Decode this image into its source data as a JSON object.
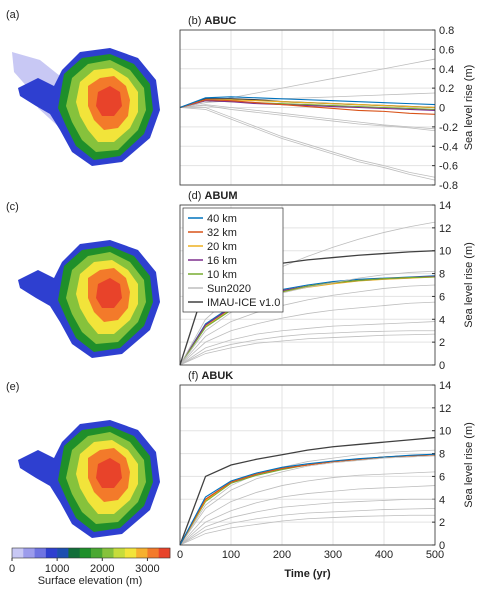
{
  "maps": [
    "(a)",
    "(c)",
    "(e)"
  ],
  "colorbar": {
    "label": "Surface elevation (m)",
    "clim": [
      0,
      3500
    ],
    "ticks": [
      0,
      1000,
      2000,
      3000
    ],
    "colors": [
      "#c8c8f4",
      "#9c9cec",
      "#6f74e2",
      "#2e3fd0",
      "#1c4fb0",
      "#126e3a",
      "#1f8f2a",
      "#4aa832",
      "#86c23c",
      "#c6dc3c",
      "#f2e43a",
      "#f6b02e",
      "#f37a2a",
      "#e8432a"
    ]
  },
  "chart_data": [
    {
      "type": "line",
      "panel": "(b)",
      "title": "ABUC",
      "ylabel": "Sea level rise (m)",
      "x": [
        0,
        50,
        100,
        150,
        200,
        250,
        300,
        350,
        400,
        450,
        500
      ],
      "xlim": [
        0,
        500
      ],
      "xticks": [
        0,
        100,
        200,
        300,
        400,
        500
      ],
      "ylim": [
        -0.8,
        0.8
      ],
      "yticks": [
        -0.8,
        -0.6,
        -0.4,
        -0.2,
        0,
        0.2,
        0.4,
        0.6,
        0.8
      ],
      "grid": true,
      "series": [
        {
          "color": "#bdbdbd",
          "values": [
            [
              0,
              0.05,
              0.1,
              0.15,
              0.2,
              0.25,
              0.3,
              0.35,
              0.4,
              0.45,
              0.5
            ],
            [
              0,
              0.0,
              -0.1,
              -0.2,
              -0.3,
              -0.38,
              -0.46,
              -0.54,
              -0.6,
              -0.67,
              -0.72
            ],
            [
              0,
              -0.02,
              -0.12,
              -0.22,
              -0.32,
              -0.4,
              -0.48,
              -0.56,
              -0.62,
              -0.69,
              -0.75
            ],
            [
              0,
              0.05,
              0.07,
              0.08,
              0.09,
              0.1,
              0.11,
              0.12,
              0.13,
              0.14,
              0.15
            ],
            [
              0,
              0.03,
              0.0,
              -0.03,
              -0.06,
              -0.09,
              -0.12,
              -0.15,
              -0.18,
              -0.2,
              -0.22
            ],
            [
              0,
              0.02,
              -0.02,
              -0.05,
              -0.08,
              -0.11,
              -0.14,
              -0.17,
              -0.19,
              -0.21,
              -0.24
            ]
          ]
        },
        {
          "color": "#404040",
          "values": [
            0,
            0.09,
            0.09,
            0.08,
            0.06,
            0.05,
            0.04,
            0.03,
            0.02,
            0.01,
            0.0
          ]
        },
        {
          "color": "#77ac30",
          "values": [
            0,
            0.07,
            0.06,
            0.05,
            0.04,
            0.03,
            0.02,
            0.01,
            0,
            -0.01,
            -0.02
          ]
        },
        {
          "color": "#7e2f8e",
          "values": [
            0,
            0.07,
            0.06,
            0.04,
            0.03,
            0.02,
            0.01,
            0,
            -0.01,
            -0.02,
            -0.03
          ]
        },
        {
          "color": "#edb120",
          "values": [
            0,
            0.08,
            0.08,
            0.07,
            0.06,
            0.05,
            0.04,
            0.03,
            0.02,
            0.01,
            0.0
          ]
        },
        {
          "color": "#d95319",
          "values": [
            0,
            0.08,
            0.07,
            0.05,
            0.03,
            0.01,
            -0.01,
            -0.03,
            -0.04,
            -0.06,
            -0.07
          ]
        },
        {
          "color": "#0072bd",
          "values": [
            0,
            0.1,
            0.11,
            0.1,
            0.09,
            0.08,
            0.07,
            0.06,
            0.05,
            0.04,
            0.03
          ]
        }
      ]
    },
    {
      "type": "line",
      "panel": "(d)",
      "title": "ABUM",
      "ylabel": "Sea level rise (m)",
      "x": [
        0,
        50,
        100,
        150,
        200,
        250,
        300,
        350,
        400,
        450,
        500
      ],
      "xlim": [
        0,
        500
      ],
      "xticks": [
        0,
        100,
        200,
        300,
        400,
        500
      ],
      "ylim": [
        0,
        14
      ],
      "yticks": [
        0,
        2,
        4,
        6,
        8,
        10,
        12,
        14
      ],
      "grid": true,
      "legend": "upper left",
      "series": [
        {
          "name": "40 km",
          "color": "#0072bd",
          "values": [
            0,
            3.6,
            5.1,
            6.0,
            6.6,
            7.0,
            7.3,
            7.5,
            7.6,
            7.7,
            7.8
          ]
        },
        {
          "name": "32 km",
          "color": "#d95319",
          "values": [
            0,
            3.5,
            5.0,
            5.9,
            6.5,
            6.9,
            7.2,
            7.4,
            7.55,
            7.65,
            7.75
          ]
        },
        {
          "name": "20 km",
          "color": "#edb120",
          "values": [
            0,
            3.4,
            4.9,
            5.8,
            6.4,
            6.8,
            7.1,
            7.35,
            7.5,
            7.6,
            7.7
          ]
        },
        {
          "name": "16 km",
          "color": "#7e2f8e",
          "values": [
            0,
            3.5,
            5.0,
            5.9,
            6.5,
            6.9,
            7.2,
            7.4,
            7.55,
            7.65,
            7.75
          ]
        },
        {
          "name": "10 km",
          "color": "#77ac30",
          "values": [
            0,
            3.3,
            4.8,
            5.8,
            6.4,
            6.9,
            7.2,
            7.4,
            7.55,
            7.65,
            7.7
          ]
        },
        {
          "name": "Sun2020",
          "color": "#bdbdbd",
          "values": [
            [
              0,
              4,
              6,
              7.5,
              8.6,
              9.5,
              10.3,
              11,
              11.6,
              12.1,
              12.5
            ],
            [
              0,
              3,
              4.6,
              5.6,
              6.3,
              6.8,
              7.2,
              7.6,
              7.9,
              8.1,
              8.2
            ],
            [
              0,
              2.5,
              3.8,
              4.6,
              5.2,
              5.7,
              6.1,
              6.4,
              6.7,
              6.9,
              7.0
            ],
            [
              0,
              2,
              3,
              3.6,
              4.1,
              4.5,
              4.8,
              5.0,
              5.2,
              5.4,
              5.5
            ],
            [
              0,
              1.5,
              2.2,
              2.7,
              3.0,
              3.2,
              3.4,
              3.5,
              3.6,
              3.7,
              3.8
            ],
            [
              0,
              1.2,
              1.8,
              2.2,
              2.5,
              2.7,
              2.8,
              2.9,
              2.95,
              3.0,
              3.0
            ],
            [
              0,
              1.0,
              1.5,
              1.9,
              2.1,
              2.3,
              2.4,
              2.5,
              2.6,
              2.65,
              2.7
            ]
          ]
        },
        {
          "name": "IMAU-ICE v1.0",
          "color": "#404040",
          "values": [
            0,
            7,
            8.2,
            8.6,
            8.9,
            9.2,
            9.4,
            9.6,
            9.75,
            9.9,
            10.0
          ]
        }
      ]
    },
    {
      "type": "line",
      "panel": "(f)",
      "title": "ABUK",
      "ylabel": "Sea level rise (m)",
      "xlabel": "Time (yr)",
      "x": [
        0,
        50,
        100,
        150,
        200,
        250,
        300,
        350,
        400,
        450,
        500
      ],
      "xlim": [
        0,
        500
      ],
      "xticks": [
        0,
        100,
        200,
        300,
        400,
        500
      ],
      "ylim": [
        0,
        14
      ],
      "yticks": [
        0,
        2,
        4,
        6,
        8,
        10,
        12,
        14
      ],
      "grid": true,
      "series": [
        {
          "color": "#bdbdbd",
          "values": [
            [
              0,
              3.5,
              5.2,
              6.2,
              6.8,
              7.3,
              7.6,
              7.9,
              8.1,
              8.2,
              8.3
            ],
            [
              0,
              3.2,
              4.8,
              5.8,
              6.4,
              6.9,
              7.2,
              7.4,
              7.6,
              7.7,
              7.8
            ],
            [
              0,
              2.5,
              3.8,
              4.6,
              5.2,
              5.6,
              5.9,
              6.1,
              6.2,
              6.3,
              6.4
            ],
            [
              0,
              2.0,
              3.0,
              3.7,
              4.2,
              4.5,
              4.7,
              4.9,
              5.0,
              5.1,
              5.2
            ],
            [
              0,
              1.6,
              2.4,
              2.9,
              3.3,
              3.5,
              3.7,
              3.8,
              3.9,
              4.0,
              4.0
            ],
            [
              0,
              1.3,
              1.9,
              2.3,
              2.6,
              2.8,
              2.9,
              3.0,
              3.1,
              3.15,
              3.2
            ],
            [
              0,
              1.0,
              1.5,
              1.8,
              2.1,
              2.3,
              2.4,
              2.5,
              2.55,
              2.6,
              2.6
            ]
          ]
        },
        {
          "color": "#404040",
          "values": [
            0,
            6,
            7,
            7.5,
            7.9,
            8.3,
            8.6,
            8.8,
            9.0,
            9.2,
            9.4
          ]
        },
        {
          "color": "#77ac30",
          "values": [
            0,
            3.8,
            5.4,
            6.1,
            6.6,
            7.0,
            7.3,
            7.5,
            7.7,
            7.8,
            7.9
          ]
        },
        {
          "color": "#7e2f8e",
          "values": [
            0,
            4.0,
            5.5,
            6.2,
            6.7,
            7.0,
            7.3,
            7.5,
            7.7,
            7.8,
            7.9
          ]
        },
        {
          "color": "#edb120",
          "values": [
            0,
            3.9,
            5.5,
            6.2,
            6.7,
            7.0,
            7.3,
            7.5,
            7.7,
            7.8,
            7.9
          ]
        },
        {
          "color": "#d95319",
          "values": [
            0,
            4.0,
            5.5,
            6.2,
            6.7,
            7.0,
            7.3,
            7.5,
            7.7,
            7.8,
            7.9
          ]
        },
        {
          "color": "#0072bd",
          "values": [
            0,
            4.2,
            5.6,
            6.3,
            6.8,
            7.1,
            7.35,
            7.55,
            7.7,
            7.85,
            7.95
          ]
        }
      ]
    }
  ]
}
